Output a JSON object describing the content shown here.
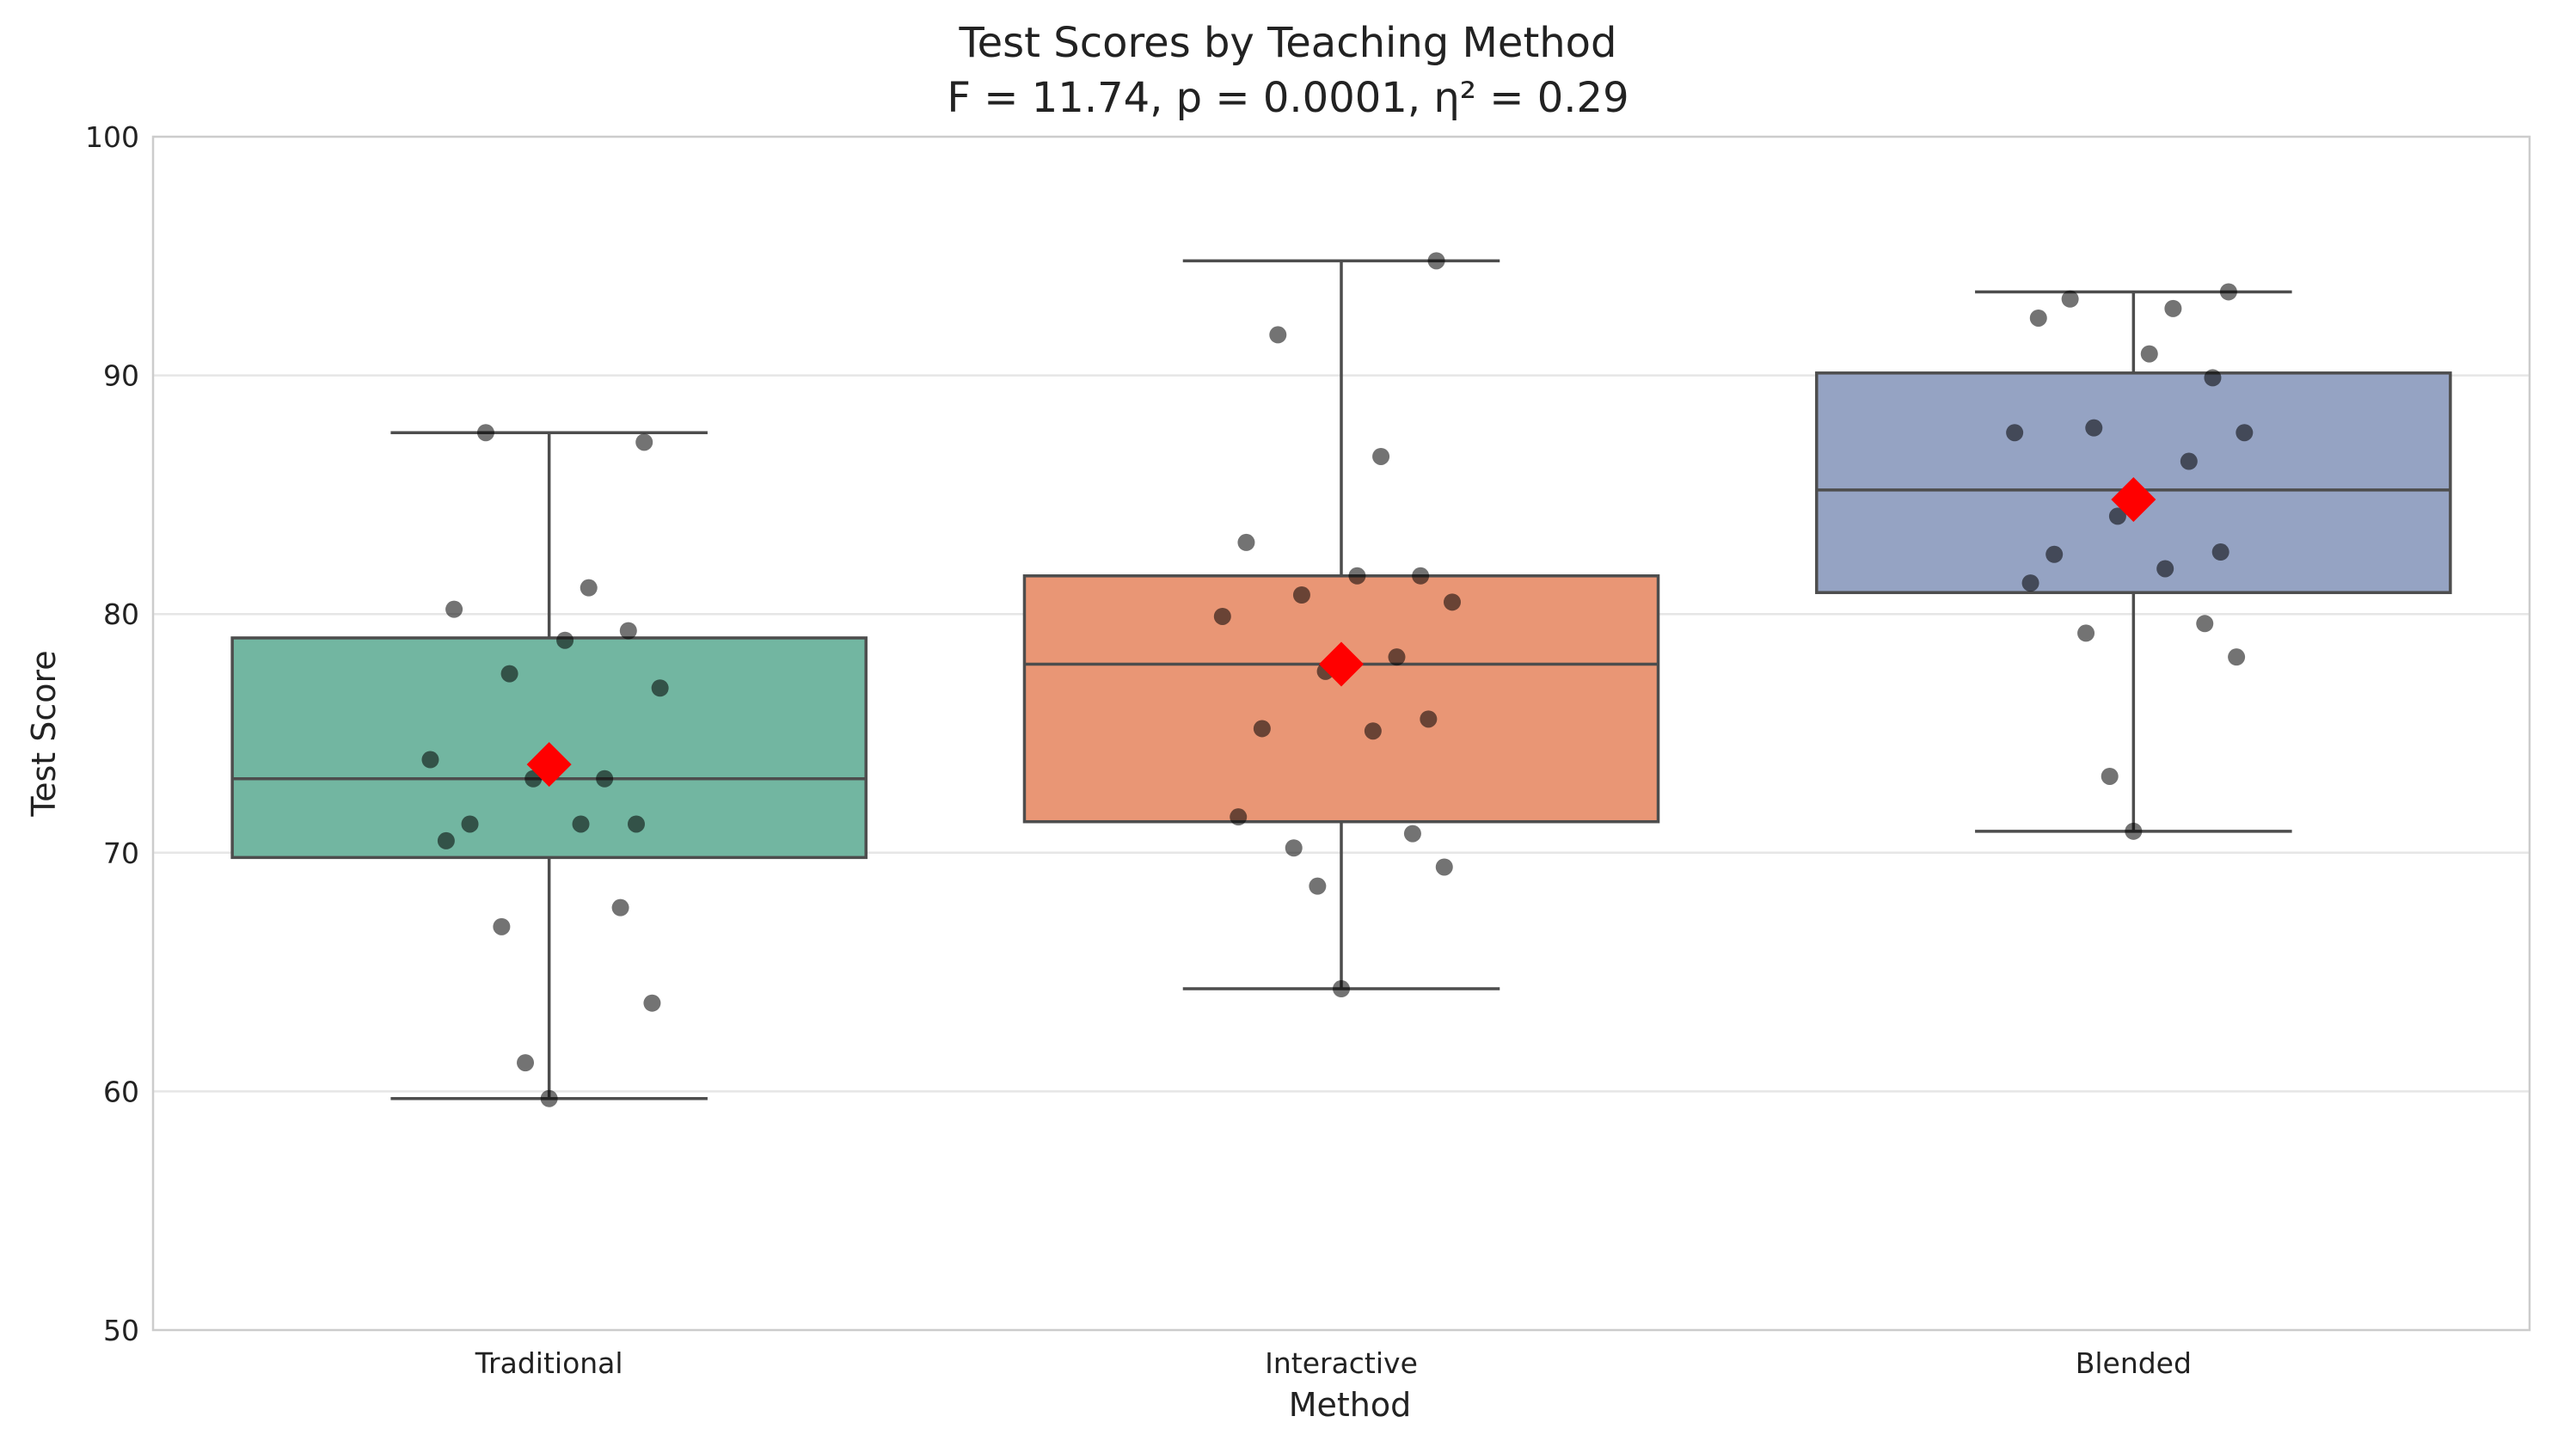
{
  "chart_data": {
    "type": "box",
    "title": "Test Scores by Teaching Method",
    "subtitle": "F = 11.74, p = 0.0001, η² = 0.29",
    "xlabel": "Method",
    "ylabel": "Test Score",
    "ylim": [
      50,
      100
    ],
    "yticks": [
      50,
      60,
      70,
      80,
      90,
      100
    ],
    "grid": "horizontal",
    "categories": [
      "Traditional",
      "Interactive",
      "Blended"
    ],
    "boxes": [
      {
        "name": "Traditional",
        "color": "#72b6a1",
        "whisker_low": 59.7,
        "q1": 69.8,
        "median": 73.1,
        "q3": 79.0,
        "whisker_high": 87.6,
        "mean": 73.7,
        "points": [
          87.2,
          87.6,
          81.1,
          80.2,
          78.9,
          79.3,
          77.5,
          76.9,
          73.9,
          73.1,
          73.1,
          71.2,
          71.2,
          71.2,
          70.5,
          67.7,
          66.9,
          63.7,
          61.2,
          59.7
        ]
      },
      {
        "name": "Interactive",
        "color": "#e99675",
        "whisker_low": 64.3,
        "q1": 71.3,
        "median": 77.9,
        "q3": 81.6,
        "whisker_high": 94.8,
        "mean": 77.9,
        "points": [
          94.8,
          91.7,
          86.6,
          83.0,
          81.6,
          81.6,
          80.8,
          80.5,
          79.9,
          78.2,
          77.6,
          75.6,
          75.2,
          75.1,
          71.5,
          70.8,
          70.2,
          69.4,
          68.6,
          64.3
        ]
      },
      {
        "name": "Blended",
        "color": "#95a3c3",
        "whisker_low": 70.9,
        "q1": 80.9,
        "median": 85.2,
        "q3": 90.1,
        "whisker_high": 93.5,
        "mean": 84.8,
        "points": [
          93.5,
          93.2,
          92.8,
          92.4,
          90.9,
          89.9,
          87.8,
          87.6,
          87.6,
          86.4,
          84.1,
          82.6,
          82.5,
          81.9,
          81.3,
          79.6,
          79.2,
          78.2,
          73.2,
          70.9
        ]
      }
    ]
  }
}
